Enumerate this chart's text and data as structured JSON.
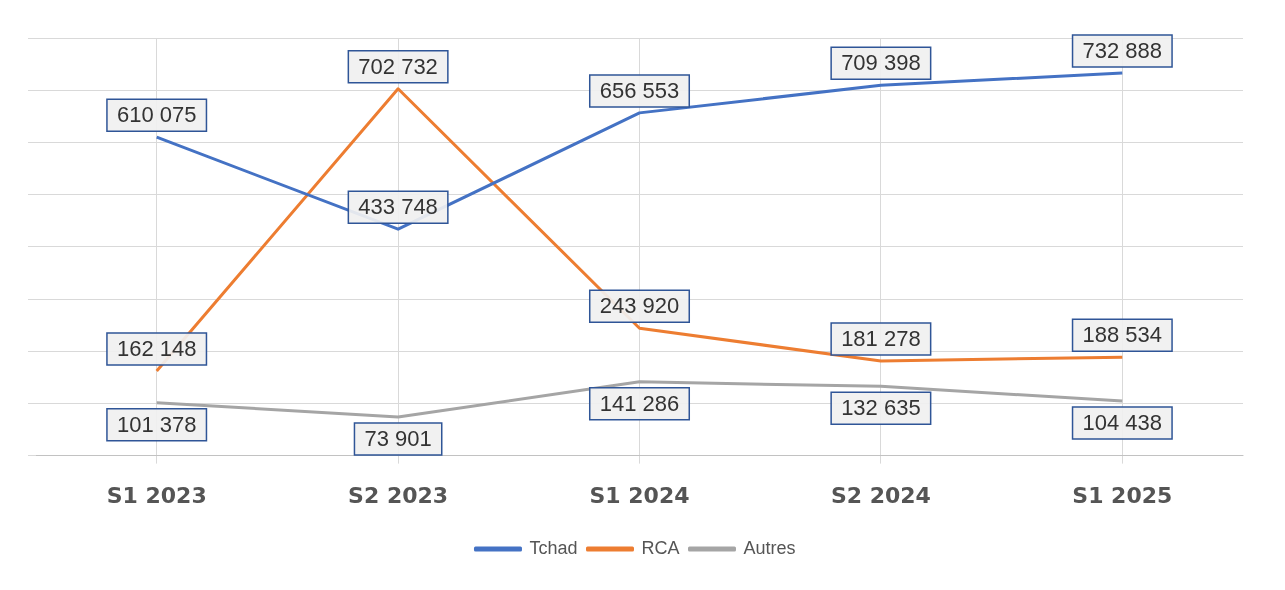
{
  "chart_data": {
    "type": "line",
    "categories": [
      "S1 2023",
      "S2 2023",
      "S1 2024",
      "S2 2024",
      "S1 2025"
    ],
    "series": [
      {
        "name": "Tchad",
        "color": "#4472c4",
        "values": [
          610075,
          433748,
          656553,
          709398,
          732888
        ],
        "value_labels": [
          "610 075",
          "433 748",
          "656 553",
          "709 398",
          "732 888"
        ]
      },
      {
        "name": "RCA",
        "color": "#ed7d31",
        "values": [
          162148,
          702732,
          243920,
          181278,
          188534
        ],
        "value_labels": [
          "162 148",
          "702 732",
          "243 920",
          "181 278",
          "188 534"
        ]
      },
      {
        "name": "Autres",
        "color": "#a5a5a5",
        "values": [
          101378,
          73901,
          141286,
          132635,
          104438
        ],
        "value_labels": [
          "101 378",
          "73 901",
          "141 286",
          "132 635",
          "104 438"
        ]
      }
    ],
    "grid": true,
    "legend": "bottom",
    "marker": "none",
    "line_style": "solid"
  }
}
